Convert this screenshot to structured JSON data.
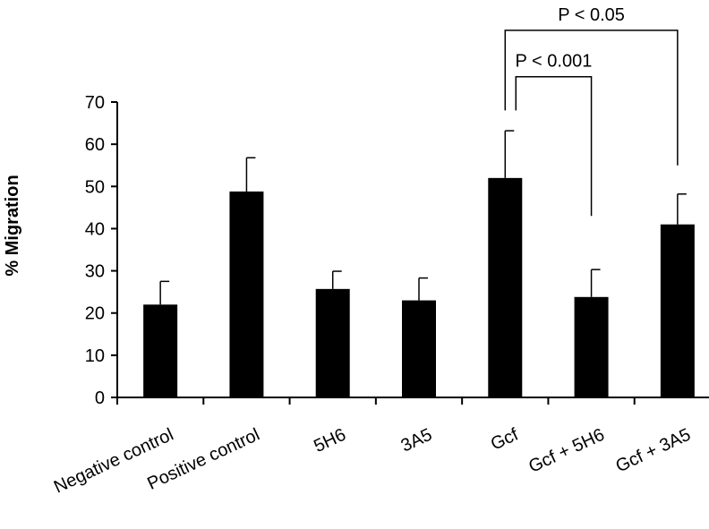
{
  "chart_data": {
    "type": "bar",
    "title": "",
    "xlabel": "",
    "ylabel": "% Migration",
    "ylim": [
      0,
      70
    ],
    "yticks": [
      0,
      10,
      20,
      30,
      40,
      50,
      60,
      70
    ],
    "grid": false,
    "legend": "none",
    "categories": [
      "Negative control",
      "Positive control",
      "5H6",
      "3A5",
      "Gcf",
      "Gcf + 5H6",
      "Gcf + 3A5"
    ],
    "values": [
      22,
      48.8,
      25.7,
      23,
      52,
      23.8,
      41
    ],
    "errors": [
      5.5,
      8,
      4.2,
      5.3,
      11.2,
      6.5,
      7.2
    ],
    "bar_color": "#000000",
    "annotations": [
      {
        "label": "P < 0.001",
        "from": "Gcf",
        "to": "Gcf + 5H6",
        "bracket_y": 76,
        "end_y_left": 68,
        "end_y_right": 43
      },
      {
        "label": "P < 0.05",
        "from": "Gcf",
        "to": "Gcf + 3A5",
        "bracket_y": 87,
        "end_y_left": 68,
        "end_y_right": 55
      }
    ]
  }
}
